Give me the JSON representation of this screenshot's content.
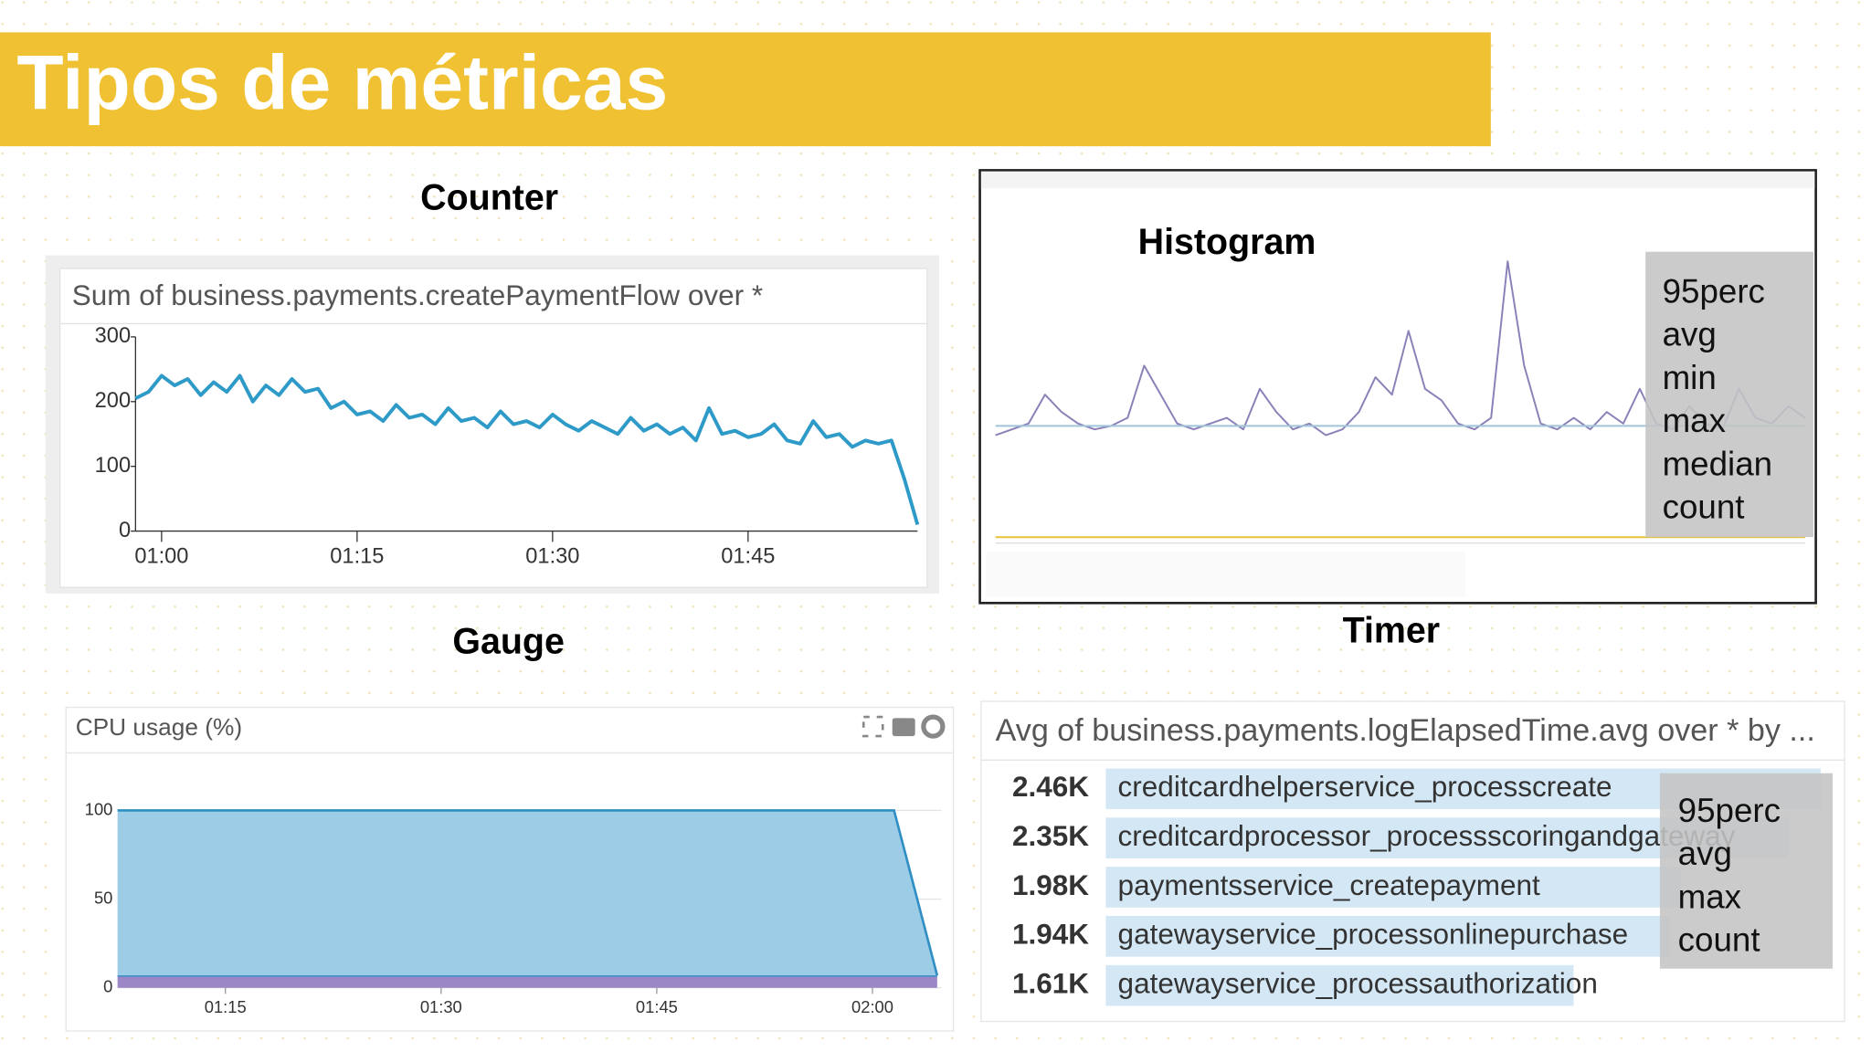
{
  "title": "Tipos de métricas",
  "chart_data": [
    {
      "type": "line",
      "label": "Counter",
      "title": "Sum of business.payments.createPaymentFlow over *",
      "color": "#2e9ac8",
      "values": [
        205,
        215,
        240,
        225,
        235,
        210,
        230,
        215,
        240,
        200,
        225,
        210,
        235,
        215,
        220,
        190,
        200,
        180,
        185,
        170,
        195,
        175,
        180,
        165,
        190,
        170,
        175,
        160,
        185,
        165,
        170,
        160,
        180,
        165,
        155,
        170,
        160,
        150,
        175,
        155,
        165,
        150,
        160,
        140,
        190,
        150,
        155,
        145,
        150,
        165,
        140,
        135,
        170,
        145,
        150,
        130,
        140,
        135,
        140,
        80,
        10
      ],
      "xlim": [
        0,
        60
      ],
      "xticks": [
        {
          "value": 2,
          "label": "01:00"
        },
        {
          "value": 17,
          "label": "01:15"
        },
        {
          "value": 32,
          "label": "01:30"
        },
        {
          "value": 47,
          "label": "01:45"
        }
      ],
      "ylim": [
        0,
        300
      ],
      "yticks": [
        0,
        100,
        200,
        300
      ]
    },
    {
      "type": "line",
      "label": "Histogram",
      "legend_box": [
        "95perc",
        "avg",
        "min",
        "max",
        "median",
        "count"
      ],
      "xlim": [
        0,
        49
      ],
      "ylim": [
        0,
        3000
      ],
      "series": [
        {
          "color": "#8c80b8",
          "values": [
            900,
            950,
            1000,
            1250,
            1100,
            1000,
            950,
            980,
            1050,
            1500,
            1250,
            1000,
            950,
            1000,
            1050,
            950,
            1300,
            1100,
            950,
            1000,
            900,
            950,
            1100,
            1400,
            1250,
            1800,
            1300,
            1200,
            1000,
            950,
            1050,
            2400,
            1500,
            1000,
            950,
            1050,
            950,
            1100,
            1000,
            1300,
            1000,
            950,
            1150,
            1000,
            950,
            1300,
            1050,
            1000,
            1150,
            1050
          ]
        },
        {
          "color": "#9ec5d8",
          "values": [
            980,
            980,
            980,
            980,
            980,
            980,
            980,
            980,
            980,
            980,
            980,
            980,
            980,
            980,
            980,
            980,
            980,
            980,
            980,
            980,
            980,
            980,
            980,
            980,
            980,
            980,
            980,
            980,
            980,
            980,
            980,
            980,
            980,
            980,
            980,
            980,
            980,
            980,
            980,
            980,
            980,
            980,
            980,
            980,
            980,
            980,
            980,
            980,
            980,
            980
          ]
        },
        {
          "color": "#e8c23a",
          "values": [
            20,
            20,
            20,
            20,
            20,
            20,
            20,
            20,
            20,
            20,
            20,
            20,
            20,
            20,
            20,
            20,
            20,
            20,
            20,
            20,
            20,
            20,
            20,
            20,
            20,
            20,
            20,
            20,
            20,
            20,
            20,
            20,
            20,
            20,
            20,
            20,
            20,
            20,
            20,
            20,
            20,
            20,
            20,
            20,
            20,
            20,
            20,
            20,
            20,
            20
          ]
        }
      ]
    },
    {
      "type": "area",
      "label": "Gauge",
      "title": "CPU usage (%)",
      "stacked": true,
      "xlim": [
        0,
        19.1
      ],
      "xticks": [
        {
          "value": 2.5,
          "label": "01:15"
        },
        {
          "value": 7.5,
          "label": "01:30"
        },
        {
          "value": 12.5,
          "label": "01:45"
        },
        {
          "value": 17.5,
          "label": "02:00"
        }
      ],
      "ylim": [
        0,
        120
      ],
      "yticks": [
        0,
        50,
        100
      ],
      "series": [
        {
          "color": "#9b86c6",
          "values": [
            7,
            7,
            7,
            7,
            7,
            7,
            7,
            7,
            7,
            7,
            7,
            7,
            7,
            7,
            7,
            7,
            7,
            7,
            7,
            7
          ]
        },
        {
          "color": "#9dcde6",
          "values": [
            93,
            93,
            93,
            93,
            93,
            93,
            93,
            93,
            93,
            93,
            93,
            93,
            93,
            93,
            93,
            93,
            93,
            93,
            93,
            0
          ]
        }
      ]
    },
    {
      "type": "hbar",
      "label": "Timer",
      "title": "Avg of business.payments.logElapsedTime.avg over * by ...",
      "color": "#d4e7f4",
      "categories": [
        "creditcardhelperservice_processcreate",
        "creditcardprocessor_processscoringandgateway",
        "paymentsservice_createpayment",
        "gatewayservice_processonlinepurchase",
        "gatewayservice_processauthorization"
      ],
      "values": [
        2460,
        2350,
        1980,
        1940,
        1610
      ],
      "value_labels": [
        "2.46K",
        "2.35K",
        "1.98K",
        "1.94K",
        "1.61K"
      ],
      "xlim": [
        0,
        2460
      ],
      "legend_box": [
        "95perc",
        "avg",
        "max",
        "count"
      ]
    }
  ]
}
